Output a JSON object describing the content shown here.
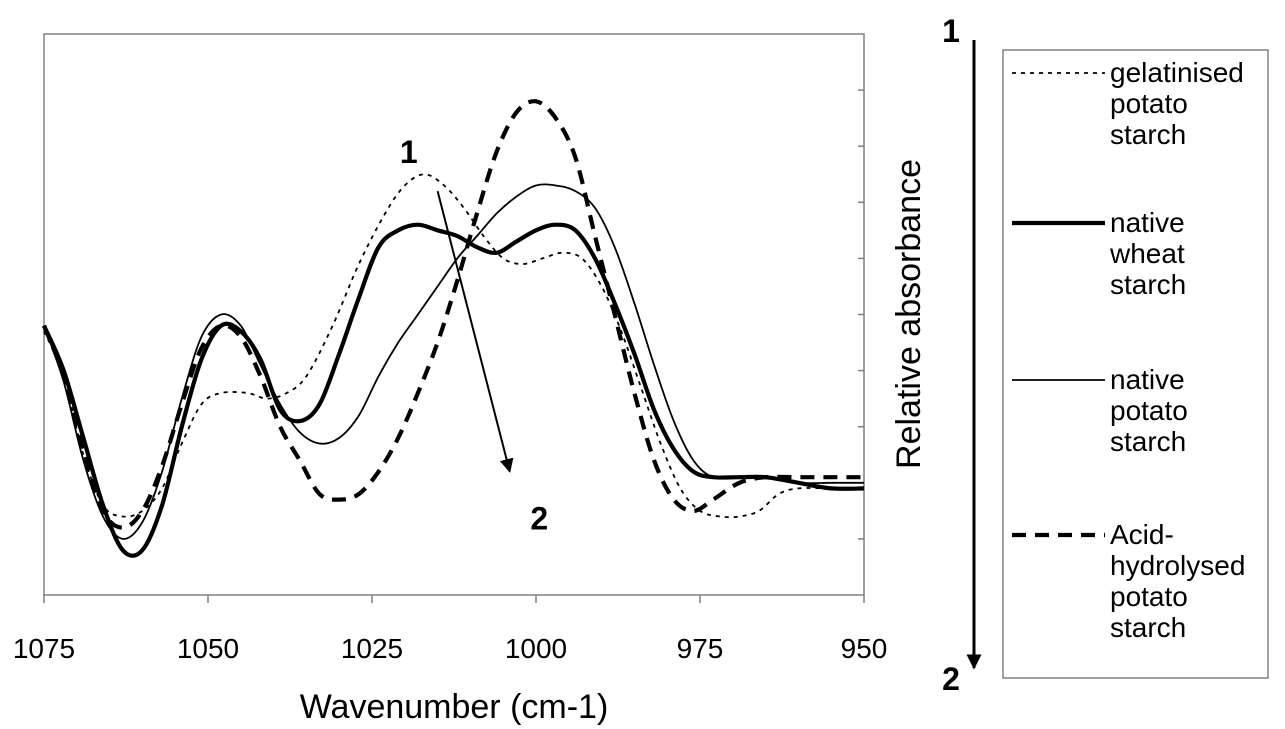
{
  "chart_data": {
    "type": "line",
    "xlabel": "Wavenumber (cm-1)",
    "ylabel": "Relative absorbance",
    "xlim": [
      1075,
      950
    ],
    "x_reversed": true,
    "xticks": [
      "1075",
      "1050",
      "1025",
      "1000",
      "975",
      "950"
    ],
    "xtick_values": [
      1075,
      1050,
      1025,
      1000,
      975,
      950
    ],
    "ylim": [
      0,
      1
    ],
    "y_ticks_unlabeled": [
      0.1,
      0.2,
      0.3,
      0.4,
      0.5,
      0.6,
      0.7,
      0.8,
      0.9
    ],
    "grid": false,
    "legend_position": "right",
    "series": [
      {
        "name": "gelatinised potato starch",
        "style": "dotted",
        "width": 1.8,
        "legend_lines": [
          "gelatinised",
          "potato",
          "starch"
        ],
        "points": [
          [
            1075,
            0.47
          ],
          [
            1072,
            0.39
          ],
          [
            1069,
            0.25
          ],
          [
            1066,
            0.16
          ],
          [
            1063,
            0.14
          ],
          [
            1060,
            0.15
          ],
          [
            1057,
            0.19
          ],
          [
            1054,
            0.27
          ],
          [
            1051,
            0.34
          ],
          [
            1048,
            0.36
          ],
          [
            1044,
            0.36
          ],
          [
            1041,
            0.35
          ],
          [
            1038,
            0.36
          ],
          [
            1035,
            0.39
          ],
          [
            1031,
            0.48
          ],
          [
            1027,
            0.59
          ],
          [
            1023,
            0.68
          ],
          [
            1020,
            0.73
          ],
          [
            1017,
            0.75
          ],
          [
            1014,
            0.73
          ],
          [
            1011,
            0.69
          ],
          [
            1008,
            0.64
          ],
          [
            1005,
            0.6
          ],
          [
            1002,
            0.59
          ],
          [
            999,
            0.6
          ],
          [
            996,
            0.61
          ],
          [
            993,
            0.6
          ],
          [
            990,
            0.55
          ],
          [
            987,
            0.47
          ],
          [
            984,
            0.37
          ],
          [
            981,
            0.27
          ],
          [
            978,
            0.19
          ],
          [
            975,
            0.15
          ],
          [
            972,
            0.14
          ],
          [
            969,
            0.14
          ],
          [
            966,
            0.15
          ],
          [
            963,
            0.18
          ],
          [
            960,
            0.19
          ],
          [
            955,
            0.19
          ],
          [
            950,
            0.19
          ]
        ]
      },
      {
        "name": "native wheat starch",
        "style": "solid",
        "width": 4.2,
        "legend_lines": [
          "native",
          "wheat",
          "starch"
        ],
        "points": [
          [
            1075,
            0.48
          ],
          [
            1072,
            0.4
          ],
          [
            1069,
            0.28
          ],
          [
            1066,
            0.16
          ],
          [
            1063,
            0.08
          ],
          [
            1060,
            0.08
          ],
          [
            1057,
            0.16
          ],
          [
            1054,
            0.3
          ],
          [
            1051,
            0.42
          ],
          [
            1048,
            0.48
          ],
          [
            1045,
            0.47
          ],
          [
            1042,
            0.42
          ],
          [
            1039,
            0.33
          ],
          [
            1036,
            0.31
          ],
          [
            1033,
            0.34
          ],
          [
            1030,
            0.43
          ],
          [
            1027,
            0.53
          ],
          [
            1024,
            0.62
          ],
          [
            1021,
            0.65
          ],
          [
            1018,
            0.66
          ],
          [
            1015,
            0.65
          ],
          [
            1012,
            0.64
          ],
          [
            1009,
            0.62
          ],
          [
            1006,
            0.61
          ],
          [
            1003,
            0.63
          ],
          [
            1000,
            0.65
          ],
          [
            997,
            0.66
          ],
          [
            994,
            0.65
          ],
          [
            991,
            0.6
          ],
          [
            988,
            0.52
          ],
          [
            985,
            0.43
          ],
          [
            982,
            0.33
          ],
          [
            979,
            0.26
          ],
          [
            976,
            0.22
          ],
          [
            973,
            0.21
          ],
          [
            969,
            0.21
          ],
          [
            965,
            0.21
          ],
          [
            960,
            0.2
          ],
          [
            955,
            0.19
          ],
          [
            950,
            0.19
          ]
        ]
      },
      {
        "name": "native potato starch",
        "style": "solid",
        "width": 1.8,
        "legend_lines": [
          "native",
          "potato",
          "starch"
        ],
        "points": [
          [
            1075,
            0.48
          ],
          [
            1072,
            0.38
          ],
          [
            1069,
            0.24
          ],
          [
            1066,
            0.14
          ],
          [
            1063,
            0.1
          ],
          [
            1060,
            0.13
          ],
          [
            1057,
            0.22
          ],
          [
            1054,
            0.35
          ],
          [
            1051,
            0.46
          ],
          [
            1048,
            0.5
          ],
          [
            1045,
            0.48
          ],
          [
            1042,
            0.41
          ],
          [
            1039,
            0.34
          ],
          [
            1036,
            0.29
          ],
          [
            1033,
            0.27
          ],
          [
            1030,
            0.28
          ],
          [
            1027,
            0.32
          ],
          [
            1024,
            0.39
          ],
          [
            1021,
            0.45
          ],
          [
            1018,
            0.5
          ],
          [
            1015,
            0.55
          ],
          [
            1012,
            0.6
          ],
          [
            1009,
            0.64
          ],
          [
            1006,
            0.68
          ],
          [
            1003,
            0.71
          ],
          [
            1000,
            0.73
          ],
          [
            997,
            0.73
          ],
          [
            994,
            0.72
          ],
          [
            991,
            0.69
          ],
          [
            988,
            0.62
          ],
          [
            985,
            0.52
          ],
          [
            982,
            0.41
          ],
          [
            979,
            0.31
          ],
          [
            976,
            0.24
          ],
          [
            973,
            0.21
          ],
          [
            969,
            0.21
          ],
          [
            965,
            0.21
          ],
          [
            960,
            0.2
          ],
          [
            955,
            0.2
          ],
          [
            950,
            0.2
          ]
        ]
      },
      {
        "name": "Acid-hydrolysed potato starch",
        "style": "dashed",
        "width": 4.2,
        "legend_lines": [
          "Acid-",
          "hydrolysed",
          "potato",
          "starch"
        ],
        "points": [
          [
            1075,
            0.48
          ],
          [
            1072,
            0.39
          ],
          [
            1069,
            0.26
          ],
          [
            1066,
            0.15
          ],
          [
            1063,
            0.12
          ],
          [
            1060,
            0.15
          ],
          [
            1057,
            0.23
          ],
          [
            1054,
            0.34
          ],
          [
            1051,
            0.44
          ],
          [
            1048,
            0.48
          ],
          [
            1045,
            0.46
          ],
          [
            1042,
            0.39
          ],
          [
            1039,
            0.3
          ],
          [
            1036,
            0.24
          ],
          [
            1033,
            0.18
          ],
          [
            1030,
            0.17
          ],
          [
            1027,
            0.18
          ],
          [
            1024,
            0.22
          ],
          [
            1021,
            0.28
          ],
          [
            1018,
            0.36
          ],
          [
            1015,
            0.45
          ],
          [
            1012,
            0.56
          ],
          [
            1009,
            0.68
          ],
          [
            1006,
            0.79
          ],
          [
            1003,
            0.86
          ],
          [
            1000,
            0.88
          ],
          [
            997,
            0.85
          ],
          [
            994,
            0.78
          ],
          [
            991,
            0.64
          ],
          [
            988,
            0.5
          ],
          [
            985,
            0.36
          ],
          [
            982,
            0.24
          ],
          [
            979,
            0.17
          ],
          [
            976,
            0.15
          ],
          [
            973,
            0.17
          ],
          [
            969,
            0.2
          ],
          [
            965,
            0.21
          ],
          [
            960,
            0.21
          ],
          [
            955,
            0.21
          ],
          [
            950,
            0.21
          ]
        ]
      }
    ],
    "annotations": [
      {
        "text": "1",
        "role": "start",
        "x": 1018,
        "y": 0.77
      },
      {
        "text": "2",
        "role": "end",
        "x": 1003,
        "y": 0.17
      }
    ],
    "annotation_arrow": {
      "from": [
        1015,
        0.72
      ],
      "to": [
        1004,
        0.22
      ]
    },
    "legend_arrow_labels": {
      "top": "1",
      "bottom": "2"
    }
  }
}
